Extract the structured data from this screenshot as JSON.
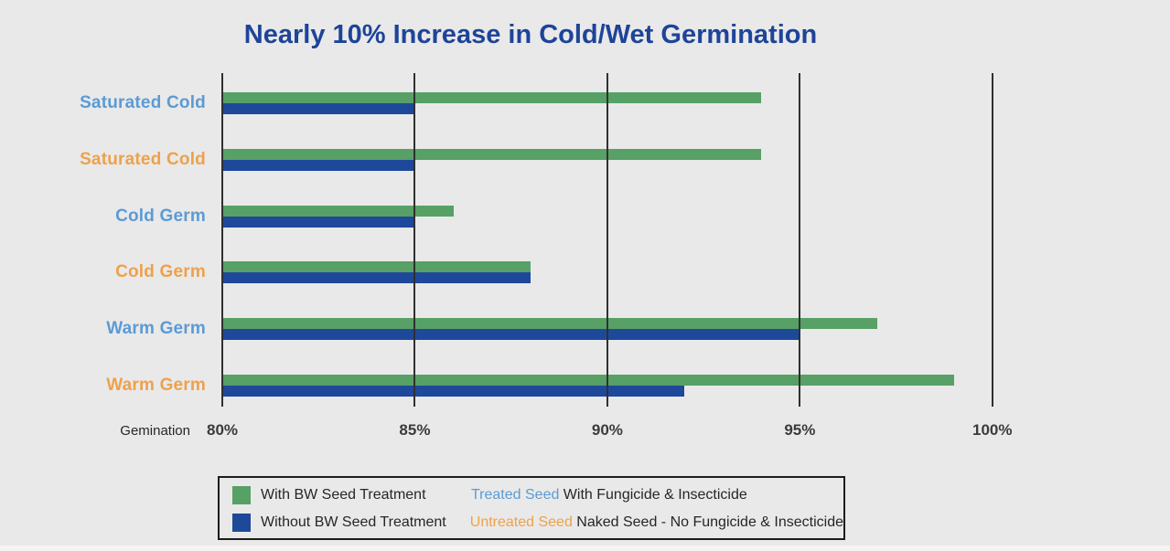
{
  "title": "Nearly 10% Increase in Cold/Wet Germination",
  "colors": {
    "background": "#e9e9e9",
    "title_text": "#1e4499",
    "treated_label_blue": "#5b9bd5",
    "untreated_label_orange": "#eea14b",
    "bar_green": "#57a066",
    "bar_blue": "#1e489a",
    "gridline": "#303030",
    "tick_text": "#3b3b3b",
    "legend_border": "#1c1c1c"
  },
  "chart_data": {
    "type": "bar",
    "orientation": "horizontal",
    "title": "Nearly 10% Increase in Cold/Wet Germination",
    "xlabel": "Gemination",
    "ylabel": "",
    "xlim": [
      80,
      102.5
    ],
    "grid": "vertical solid lines at each tick, drawn over bars",
    "legend_position": "bottom boxed",
    "categories": [
      "Saturated Cold",
      "Saturated Cold",
      "Cold Germ",
      "Cold Germ",
      "Warm Germ",
      "Warm Germ"
    ],
    "category_label_colors": [
      "#5b9bd5",
      "#eea14b",
      "#5b9bd5",
      "#eea14b",
      "#5b9bd5",
      "#eea14b"
    ],
    "ticks": [
      {
        "value": 80,
        "label": "80%"
      },
      {
        "value": 85,
        "label": "85%"
      },
      {
        "value": 90,
        "label": "90%"
      },
      {
        "value": 95,
        "label": "95%"
      },
      {
        "value": 100,
        "label": "100%"
      }
    ],
    "series": [
      {
        "name": "With BW Seed Treatment",
        "color": "#57a066",
        "values": [
          94,
          94,
          86,
          88,
          97,
          99
        ]
      },
      {
        "name": "Without BW Seed Treatment",
        "color": "#1e489a",
        "values": [
          85,
          85,
          85,
          88,
          95,
          92
        ]
      }
    ]
  },
  "axis": {
    "caption": "Gemination"
  },
  "legend": {
    "rows": [
      {
        "swatch_color": "#57a066",
        "label": "With BW Seed Treatment",
        "highlight": "Treated Seed",
        "highlight_color": "#5b9bd5",
        "rest": " With Fungicide & Insecticide"
      },
      {
        "swatch_color": "#1e489a",
        "label": "Without BW Seed Treatment",
        "highlight": "Untreated Seed",
        "highlight_color": "#eea14b",
        "rest": " Naked Seed - No Fungicide & Insecticide"
      }
    ]
  }
}
